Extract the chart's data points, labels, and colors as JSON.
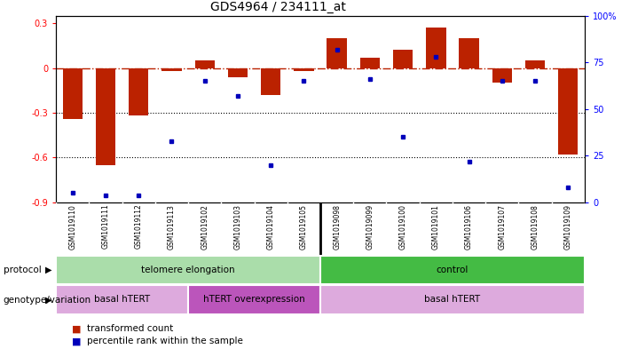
{
  "title": "GDS4964 / 234111_at",
  "samples": [
    "GSM1019110",
    "GSM1019111",
    "GSM1019112",
    "GSM1019113",
    "GSM1019102",
    "GSM1019103",
    "GSM1019104",
    "GSM1019105",
    "GSM1019098",
    "GSM1019099",
    "GSM1019100",
    "GSM1019101",
    "GSM1019106",
    "GSM1019107",
    "GSM1019108",
    "GSM1019109"
  ],
  "bar_values": [
    -0.34,
    -0.65,
    -0.32,
    -0.02,
    0.05,
    -0.06,
    -0.18,
    -0.02,
    0.2,
    0.07,
    0.12,
    0.27,
    0.2,
    -0.1,
    0.05,
    -0.58
  ],
  "dot_values": [
    5,
    4,
    4,
    33,
    65,
    57,
    20,
    65,
    82,
    66,
    35,
    78,
    22,
    65,
    65,
    8
  ],
  "ylim_left": [
    -0.9,
    0.35
  ],
  "ylim_right": [
    0,
    100
  ],
  "bar_color": "#bb2200",
  "dot_color": "#0000bb",
  "zero_line_color": "#bb2200",
  "gridline_color": "#000000",
  "gridline_values": [
    -0.3,
    -0.6
  ],
  "protocol_groups": [
    {
      "label": "telomere elongation",
      "start": 0,
      "end": 7,
      "color": "#aaddaa"
    },
    {
      "label": "control",
      "start": 8,
      "end": 15,
      "color": "#44bb44"
    }
  ],
  "genotype_groups": [
    {
      "label": "basal hTERT",
      "start": 0,
      "end": 3,
      "color": "#ddaadd"
    },
    {
      "label": "hTERT overexpression",
      "start": 4,
      "end": 7,
      "color": "#bb55bb"
    },
    {
      "label": "basal hTERT",
      "start": 8,
      "end": 15,
      "color": "#ddaadd"
    }
  ],
  "legend_items": [
    {
      "label": "transformed count",
      "color": "#bb2200"
    },
    {
      "label": "percentile rank within the sample",
      "color": "#0000bb"
    }
  ],
  "bg_color": "#ffffff",
  "plot_bg_color": "#ffffff",
  "sample_bg_color": "#cccccc",
  "title_fontsize": 10,
  "axis_fontsize": 7,
  "label_fontsize": 7.5,
  "sample_fontsize": 5.5
}
